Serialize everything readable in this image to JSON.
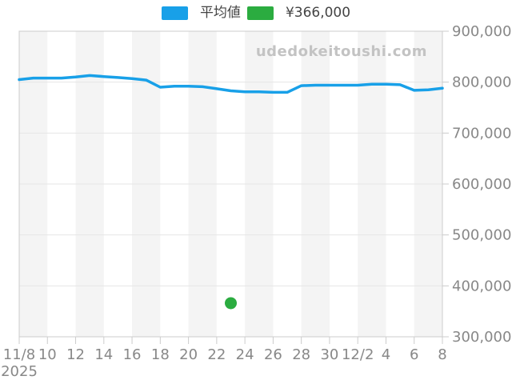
{
  "site_watermark": "udedokeitoushi.com",
  "legend": [
    {
      "label": "平均値",
      "color": "#18a0e8"
    },
    {
      "label": "¥366,000",
      "color": "#2bac40"
    }
  ],
  "colors": {
    "line": "#18a0e8",
    "point": "#2bac40",
    "stripe": "#f4f4f4",
    "grid": "#e6e6e6",
    "border": "#cccccc",
    "axis_text": "#888888",
    "legend_text": "#444444",
    "watermark": "#c3c3c3"
  },
  "chart_data": {
    "type": "line",
    "title": "",
    "grid": true,
    "legend_position": "top",
    "ylim": [
      300000,
      900000
    ],
    "y_ticks": [
      300000,
      400000,
      500000,
      600000,
      700000,
      800000,
      900000
    ],
    "y_tick_labels": [
      "300,000",
      "400,000",
      "500,000",
      "600,000",
      "700,000",
      "800,000",
      "900,000"
    ],
    "x_tick_labels": [
      "11/8",
      "10",
      "12",
      "14",
      "16",
      "18",
      "20",
      "22",
      "24",
      "26",
      "28",
      "30",
      "12/2",
      "4",
      "6",
      "8"
    ],
    "x_tick_year": "2025",
    "dates": [
      "11/8",
      "11/9",
      "11/10",
      "11/11",
      "11/12",
      "11/13",
      "11/14",
      "11/15",
      "11/16",
      "11/17",
      "11/18",
      "11/19",
      "11/20",
      "11/21",
      "11/22",
      "11/23",
      "11/24",
      "11/25",
      "11/26",
      "11/27",
      "11/28",
      "11/29",
      "11/30",
      "12/1",
      "12/2",
      "12/3",
      "12/4",
      "12/5",
      "12/6",
      "12/7",
      "12/8"
    ],
    "series": [
      {
        "name": "平均値",
        "color": "#18a0e8",
        "values": [
          805000,
          808000,
          808000,
          808000,
          810000,
          813000,
          811000,
          809000,
          807000,
          804000,
          790000,
          792000,
          792000,
          791000,
          787000,
          783000,
          781000,
          781000,
          780000,
          780000,
          793000,
          794000,
          794000,
          794000,
          794000,
          796000,
          796000,
          795000,
          784000,
          785000,
          788000
        ]
      }
    ],
    "marker": {
      "label": "¥366,000",
      "date": "11/23",
      "value": 366000,
      "color": "#2bac40"
    }
  }
}
